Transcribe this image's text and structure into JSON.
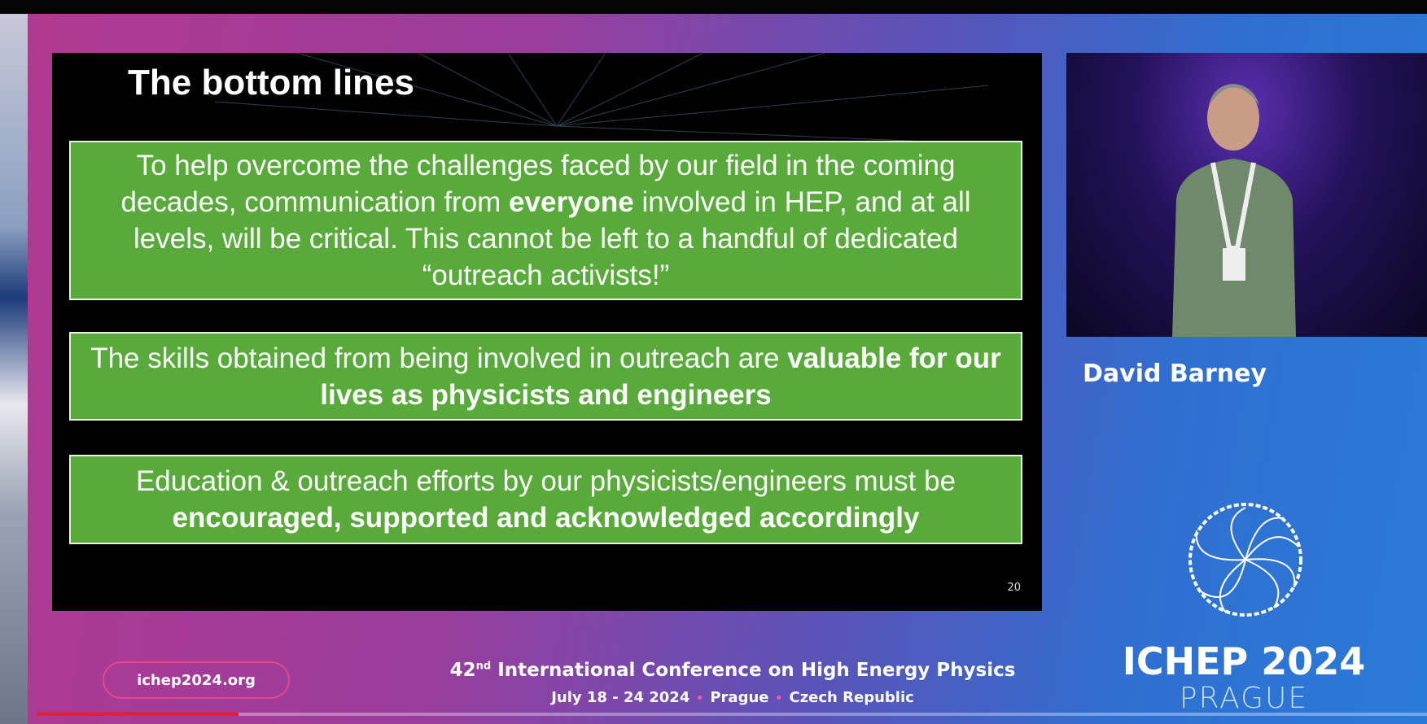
{
  "slide": {
    "title": "The bottom lines",
    "boxes": [
      {
        "runs": [
          {
            "text": "To help overcome the challenges faced by our field in the coming decades, communication from ",
            "bold": false
          },
          {
            "text": "everyone",
            "bold": true
          },
          {
            "text": " involved in HEP, and at all levels, will be critical. This cannot be left to a handful of dedicated “outreach activists!”",
            "bold": false
          }
        ]
      },
      {
        "runs": [
          {
            "text": "The skills obtained from being involved in outreach are ",
            "bold": false
          },
          {
            "text": "valuable for our lives as physicists and engineers",
            "bold": true
          }
        ]
      },
      {
        "runs": [
          {
            "text": "Education & outreach efforts by our physicists/engineers must be ",
            "bold": false
          },
          {
            "text": "encouraged, supported and acknowledged accordingly",
            "bold": true
          }
        ]
      }
    ],
    "number": "20"
  },
  "speaker": "David Barney",
  "footer": {
    "url": "ichep2024.org",
    "conference": {
      "ordinal": "42",
      "suffix": "nd",
      "name": "International Conference on High Energy Physics"
    },
    "details": [
      "July 18 - 24 2024",
      "Prague",
      "Czech Republic"
    ]
  },
  "logo": {
    "title": "ICHEP 2024",
    "city": "PRAGUE"
  }
}
